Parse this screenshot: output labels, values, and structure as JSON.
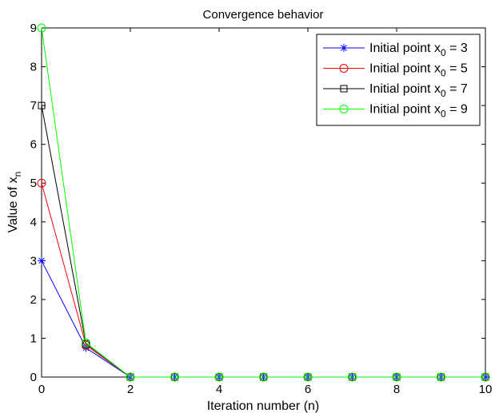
{
  "chart_data": {
    "type": "line",
    "title": "Convergence behavior",
    "xlabel": "Iteration number (n)",
    "ylabel": {
      "main": "Value of x",
      "sub": "n"
    },
    "xlim": [
      0,
      10
    ],
    "ylim": [
      0,
      9
    ],
    "xticks": [
      0,
      2,
      4,
      6,
      8,
      10
    ],
    "yticks": [
      0,
      1,
      2,
      3,
      4,
      5,
      6,
      7,
      8,
      9
    ],
    "grid": false,
    "legend_position": "top-right",
    "x": [
      0,
      1,
      2,
      3,
      4,
      5,
      6,
      7,
      8,
      9,
      10
    ],
    "series": [
      {
        "legend_main": "Initial point x",
        "legend_sub": "0",
        "legend_tail": " = 3",
        "color": "#0000ff",
        "marker": "asterisk",
        "values": [
          3,
          0.75,
          0,
          0,
          0,
          0,
          0,
          0,
          0,
          0,
          0
        ]
      },
      {
        "legend_main": "Initial point x",
        "legend_sub": "0",
        "legend_tail": " = 5",
        "color": "#ff0000",
        "marker": "circle",
        "values": [
          5,
          0.82,
          0,
          0,
          0,
          0,
          0,
          0,
          0,
          0,
          0
        ]
      },
      {
        "legend_main": "Initial point x",
        "legend_sub": "0",
        "legend_tail": " = 7",
        "color": "#000000",
        "marker": "square",
        "values": [
          7,
          0.86,
          0,
          0,
          0,
          0,
          0,
          0,
          0,
          0,
          0
        ]
      },
      {
        "legend_main": "Initial point x",
        "legend_sub": "0",
        "legend_tail": " = 9",
        "color": "#00ff00",
        "marker": "circle",
        "values": [
          9,
          0.88,
          0,
          0,
          0,
          0,
          0,
          0,
          0,
          0,
          0
        ]
      }
    ]
  }
}
